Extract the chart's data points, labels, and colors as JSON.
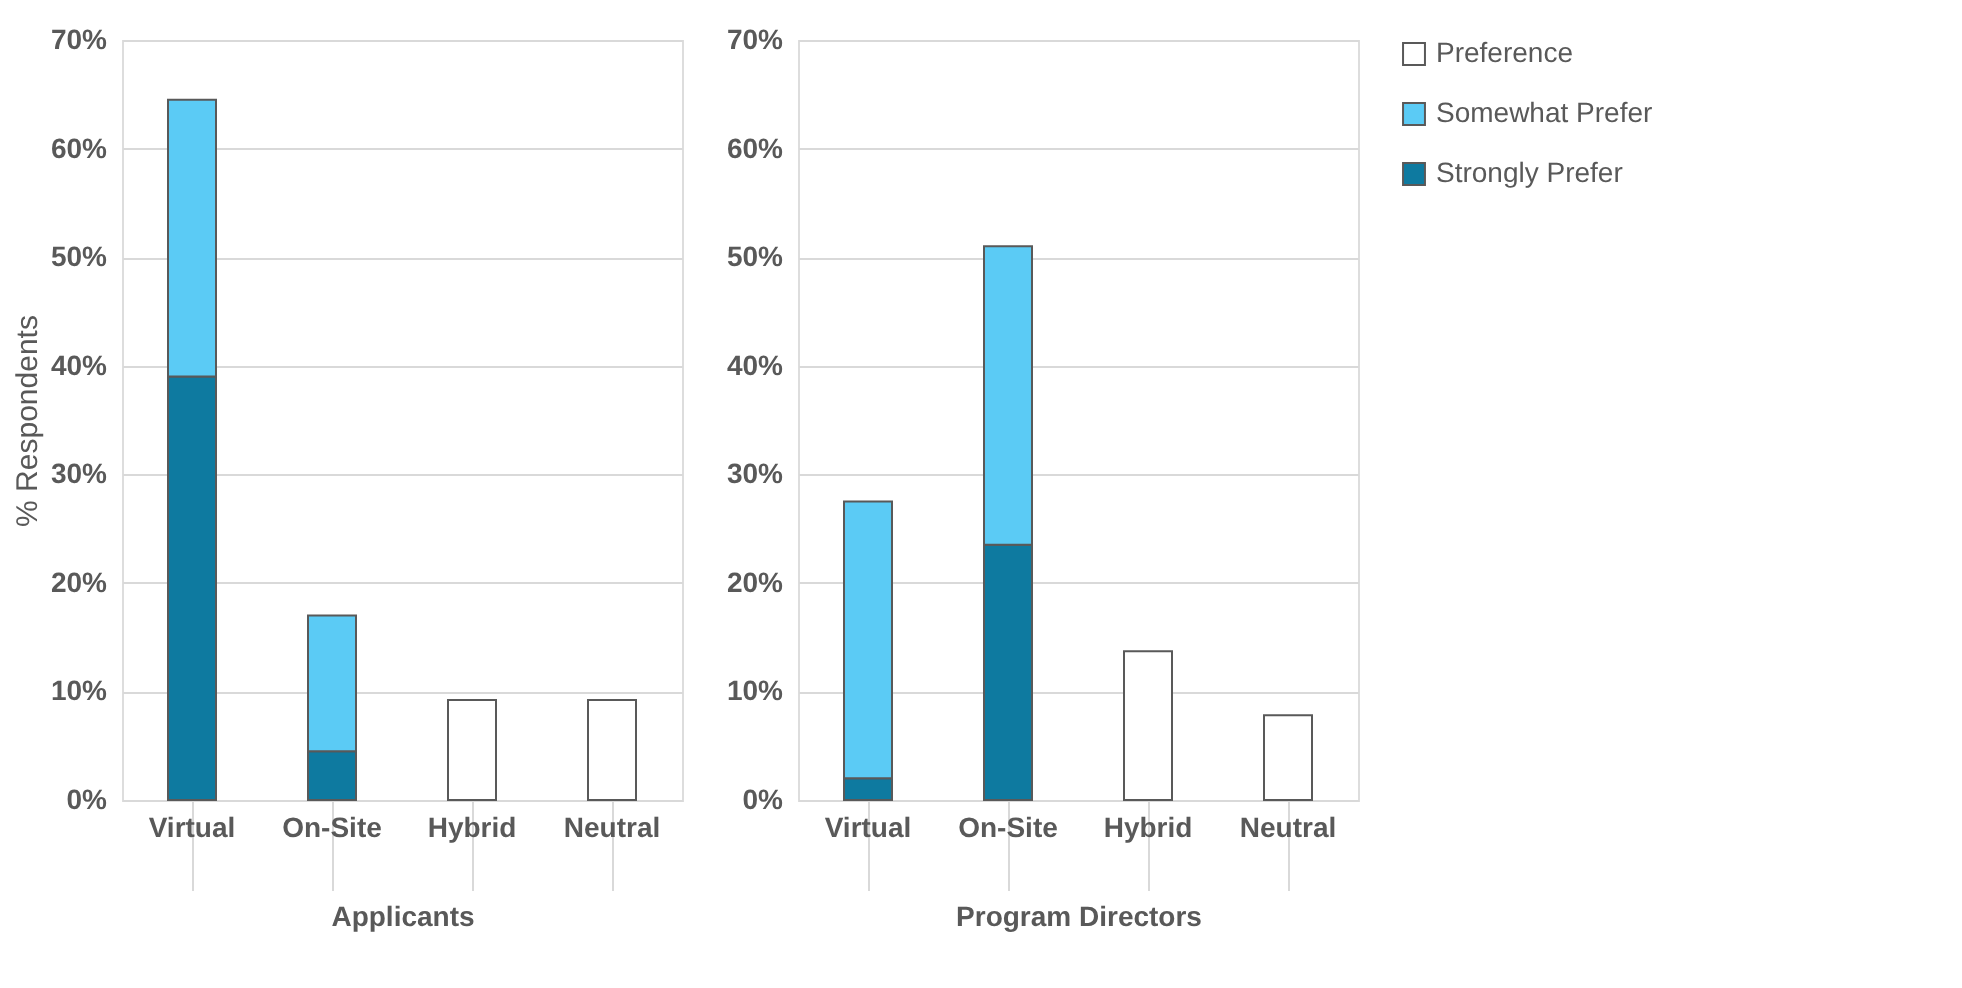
{
  "chart_data": [
    {
      "type": "bar",
      "stacked": true,
      "categories": [
        "Virtual",
        "On-Site",
        "Hybrid",
        "Neutral"
      ],
      "xlabel": "Applicants",
      "ylabel": "%  Respondents",
      "ylim": [
        0,
        70
      ],
      "yticks": [
        {
          "value": 0,
          "label": "0%"
        },
        {
          "value": 10,
          "label": "10%"
        },
        {
          "value": 20,
          "label": "20%"
        },
        {
          "value": 30,
          "label": "30%"
        },
        {
          "value": 40,
          "label": "40%"
        },
        {
          "value": 50,
          "label": "50%"
        },
        {
          "value": 60,
          "label": "60%"
        },
        {
          "value": 70,
          "label": "70%"
        }
      ],
      "grid": "y",
      "legend": "right",
      "series": [
        {
          "name": "Strongly Prefer",
          "color": "#0e7aa0",
          "values": [
            39,
            4.5,
            null,
            null
          ]
        },
        {
          "name": "Somewhat Prefer",
          "color": "#5bcbf5",
          "values": [
            25.5,
            12.5,
            null,
            null
          ]
        },
        {
          "name": "Preference",
          "color": "#ffffff",
          "values": [
            null,
            null,
            9.2,
            9.2
          ]
        }
      ]
    },
    {
      "type": "bar",
      "stacked": true,
      "categories": [
        "Virtual",
        "On-Site",
        "Hybrid",
        "Neutral"
      ],
      "xlabel": "Program Directors",
      "ylim": [
        0,
        70
      ],
      "yticks": [
        {
          "value": 0,
          "label": "0%"
        },
        {
          "value": 10,
          "label": "10%"
        },
        {
          "value": 20,
          "label": "20%"
        },
        {
          "value": 30,
          "label": "30%"
        },
        {
          "value": 40,
          "label": "40%"
        },
        {
          "value": 50,
          "label": "50%"
        },
        {
          "value": 60,
          "label": "60%"
        },
        {
          "value": 70,
          "label": "70%"
        }
      ],
      "grid": "y",
      "legend": "right",
      "series": [
        {
          "name": "Strongly Prefer",
          "color": "#0e7aa0",
          "values": [
            2,
            23.5,
            null,
            null
          ]
        },
        {
          "name": "Somewhat Prefer",
          "color": "#5bcbf5",
          "values": [
            25.5,
            27.5,
            null,
            null
          ]
        },
        {
          "name": "Preference",
          "color": "#ffffff",
          "values": [
            null,
            null,
            13.7,
            7.8
          ]
        }
      ]
    }
  ]
}
